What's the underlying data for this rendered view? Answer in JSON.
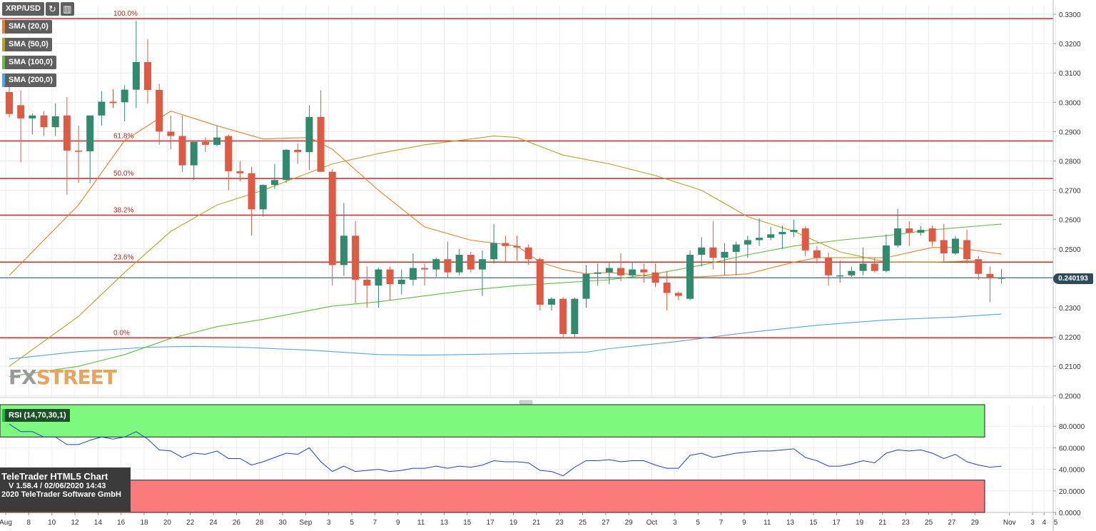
{
  "toolbar": {
    "symbol": "XRP/USD",
    "refresh_icon": "refresh-icon",
    "settings_icon": "chart-settings-icon"
  },
  "legend": [
    {
      "label": "SMA (20,0)",
      "color": "#f07f1f"
    },
    {
      "label": "SMA (50,0)",
      "color": "#b5a520"
    },
    {
      "label": "SMA (100,0)",
      "color": "#5cc13a"
    },
    {
      "label": "SMA (200,0)",
      "color": "#4aa8e8"
    }
  ],
  "watermark": {
    "part1": "FX",
    "part2": "STREET"
  },
  "current_price": "0.240193",
  "rsi": {
    "label": "RSI (14,70,30,1)"
  },
  "branding": {
    "title": "TeleTrader HTML5 Chart",
    "version": "V 1.58.4 / 02/06/2020 14:43",
    "copyright": "2020 TeleTrader Software GmbH"
  },
  "chart_data": {
    "type": "candlestick",
    "pair": "XRP/USD",
    "ylim": [
      0.2,
      0.33
    ],
    "y_ticks": [
      "0.3300",
      "0.3200",
      "0.3100",
      "0.3000",
      "0.2900",
      "0.2800",
      "0.2700",
      "0.2600",
      "0.2500",
      "0.2400",
      "0.2300",
      "0.2200",
      "0.2100",
      "0.2000"
    ],
    "x_ticks": [
      {
        "label": "Aug",
        "i": 0
      },
      {
        "label": "8",
        "i": 2
      },
      {
        "label": "10",
        "i": 4
      },
      {
        "label": "12",
        "i": 6
      },
      {
        "label": "14",
        "i": 8
      },
      {
        "label": "16",
        "i": 10
      },
      {
        "label": "18",
        "i": 12
      },
      {
        "label": "20",
        "i": 14
      },
      {
        "label": "22",
        "i": 16
      },
      {
        "label": "24",
        "i": 18
      },
      {
        "label": "26",
        "i": 20
      },
      {
        "label": "28",
        "i": 22
      },
      {
        "label": "30",
        "i": 24
      },
      {
        "label": "Sep",
        "i": 26
      },
      {
        "label": "3",
        "i": 28
      },
      {
        "label": "5",
        "i": 30
      },
      {
        "label": "7",
        "i": 32
      },
      {
        "label": "9",
        "i": 34
      },
      {
        "label": "11",
        "i": 36
      },
      {
        "label": "13",
        "i": 38
      },
      {
        "label": "15",
        "i": 40
      },
      {
        "label": "17",
        "i": 42
      },
      {
        "label": "19",
        "i": 44
      },
      {
        "label": "21",
        "i": 46
      },
      {
        "label": "23",
        "i": 48
      },
      {
        "label": "25",
        "i": 50
      },
      {
        "label": "27",
        "i": 52
      },
      {
        "label": "29",
        "i": 54
      },
      {
        "label": "Oct",
        "i": 56
      },
      {
        "label": "3",
        "i": 58
      },
      {
        "label": "5",
        "i": 60
      },
      {
        "label": "7",
        "i": 62
      },
      {
        "label": "9",
        "i": 64
      },
      {
        "label": "11",
        "i": 66
      },
      {
        "label": "13",
        "i": 68
      },
      {
        "label": "15",
        "i": 70
      },
      {
        "label": "17",
        "i": 72
      },
      {
        "label": "19",
        "i": 74
      },
      {
        "label": "21",
        "i": 76
      },
      {
        "label": "23",
        "i": 78
      },
      {
        "label": "25",
        "i": 80
      },
      {
        "label": "27",
        "i": 82
      },
      {
        "label": "29",
        "i": 84
      },
      {
        "label": "Nov",
        "i": 87
      },
      {
        "label": "3",
        "i": 89
      },
      {
        "label": "4",
        "i": 90
      },
      {
        "label": "5",
        "i": 91
      }
    ],
    "candles": [
      [
        0.3035,
        0.308,
        0.2948,
        0.296
      ],
      [
        0.299,
        0.304,
        0.2795,
        0.2945
      ],
      [
        0.2945,
        0.2962,
        0.289,
        0.2955
      ],
      [
        0.2955,
        0.297,
        0.2885,
        0.2915
      ],
      [
        0.2915,
        0.2997,
        0.2885,
        0.2952
      ],
      [
        0.2955,
        0.3018,
        0.2685,
        0.2835
      ],
      [
        0.2835,
        0.292,
        0.2725,
        0.2833
      ],
      [
        0.2833,
        0.2955,
        0.2725,
        0.2955
      ],
      [
        0.2955,
        0.3038,
        0.292,
        0.3002
      ],
      [
        0.3002,
        0.3045,
        0.298,
        0.2997
      ],
      [
        0.3,
        0.3058,
        0.2935,
        0.3043
      ],
      [
        0.3043,
        0.3278,
        0.298,
        0.3137
      ],
      [
        0.3137,
        0.3215,
        0.2995,
        0.3042
      ],
      [
        0.3042,
        0.3063,
        0.2855,
        0.29
      ],
      [
        0.29,
        0.2955,
        0.284,
        0.2885
      ],
      [
        0.2885,
        0.2955,
        0.2762,
        0.2785
      ],
      [
        0.2785,
        0.2865,
        0.2735,
        0.2865
      ],
      [
        0.2865,
        0.288,
        0.283,
        0.2855
      ],
      [
        0.2855,
        0.292,
        0.285,
        0.288
      ],
      [
        0.2885,
        0.289,
        0.27,
        0.2765
      ],
      [
        0.2765,
        0.28,
        0.273,
        0.2758
      ],
      [
        0.2758,
        0.278,
        0.2545,
        0.2635
      ],
      [
        0.2635,
        0.272,
        0.261,
        0.2718
      ],
      [
        0.2718,
        0.279,
        0.2705,
        0.2735
      ],
      [
        0.2735,
        0.284,
        0.2725,
        0.2838
      ],
      [
        0.2838,
        0.286,
        0.279,
        0.283
      ],
      [
        0.283,
        0.299,
        0.277,
        0.295
      ],
      [
        0.295,
        0.304,
        0.2763,
        0.2763
      ],
      [
        0.2763,
        0.2773,
        0.2375,
        0.2445
      ],
      [
        0.2445,
        0.2657,
        0.2408,
        0.2545
      ],
      [
        0.2545,
        0.2595,
        0.2315,
        0.2395
      ],
      [
        0.2395,
        0.244,
        0.23,
        0.2375
      ],
      [
        0.2375,
        0.2435,
        0.23,
        0.243
      ],
      [
        0.243,
        0.244,
        0.2325,
        0.238
      ],
      [
        0.238,
        0.243,
        0.2345,
        0.2395
      ],
      [
        0.2395,
        0.2485,
        0.2375,
        0.2435
      ],
      [
        0.2435,
        0.245,
        0.2375,
        0.243
      ],
      [
        0.243,
        0.247,
        0.2405,
        0.2465
      ],
      [
        0.2465,
        0.2525,
        0.24,
        0.242
      ],
      [
        0.242,
        0.25,
        0.241,
        0.248
      ],
      [
        0.248,
        0.249,
        0.242,
        0.243
      ],
      [
        0.243,
        0.2495,
        0.234,
        0.2465
      ],
      [
        0.2465,
        0.2585,
        0.245,
        0.252
      ],
      [
        0.252,
        0.2545,
        0.2455,
        0.251
      ],
      [
        0.251,
        0.2545,
        0.246,
        0.2505
      ],
      [
        0.2505,
        0.2515,
        0.2445,
        0.2465
      ],
      [
        0.2465,
        0.247,
        0.229,
        0.231
      ],
      [
        0.231,
        0.2335,
        0.229,
        0.233
      ],
      [
        0.233,
        0.2335,
        0.22,
        0.221
      ],
      [
        0.221,
        0.2335,
        0.22,
        0.233
      ],
      [
        0.233,
        0.2445,
        0.23,
        0.2415
      ],
      [
        0.2415,
        0.245,
        0.2375,
        0.242
      ],
      [
        0.242,
        0.2455,
        0.238,
        0.2435
      ],
      [
        0.2435,
        0.2485,
        0.239,
        0.241
      ],
      [
        0.241,
        0.2455,
        0.2405,
        0.243
      ],
      [
        0.243,
        0.245,
        0.2385,
        0.242
      ],
      [
        0.242,
        0.245,
        0.237,
        0.2385
      ],
      [
        0.2385,
        0.2425,
        0.229,
        0.235
      ],
      [
        0.235,
        0.2355,
        0.2325,
        0.234
      ],
      [
        0.233,
        0.2495,
        0.2325,
        0.248
      ],
      [
        0.248,
        0.254,
        0.244,
        0.2505
      ],
      [
        0.2505,
        0.2595,
        0.243,
        0.247
      ],
      [
        0.247,
        0.252,
        0.241,
        0.249
      ],
      [
        0.249,
        0.2525,
        0.241,
        0.2515
      ],
      [
        0.2515,
        0.2545,
        0.247,
        0.253
      ],
      [
        0.253,
        0.2605,
        0.251,
        0.2538
      ],
      [
        0.2538,
        0.2575,
        0.253,
        0.255
      ],
      [
        0.255,
        0.258,
        0.25,
        0.2558
      ],
      [
        0.2558,
        0.26,
        0.254,
        0.2565
      ],
      [
        0.257,
        0.2577,
        0.2475,
        0.2495
      ],
      [
        0.2495,
        0.251,
        0.245,
        0.247
      ],
      [
        0.247,
        0.2487,
        0.2375,
        0.241
      ],
      [
        0.241,
        0.246,
        0.2385,
        0.241
      ],
      [
        0.241,
        0.244,
        0.2405,
        0.2425
      ],
      [
        0.2425,
        0.2505,
        0.241,
        0.245
      ],
      [
        0.245,
        0.247,
        0.242,
        0.2425
      ],
      [
        0.2425,
        0.255,
        0.242,
        0.2512
      ],
      [
        0.2512,
        0.2637,
        0.2505,
        0.257
      ],
      [
        0.257,
        0.2595,
        0.251,
        0.2555
      ],
      [
        0.2555,
        0.2578,
        0.2545,
        0.2565
      ],
      [
        0.257,
        0.258,
        0.251,
        0.2525
      ],
      [
        0.253,
        0.2585,
        0.2455,
        0.2485
      ],
      [
        0.2485,
        0.2545,
        0.248,
        0.2535
      ],
      [
        0.253,
        0.2565,
        0.245,
        0.2465
      ],
      [
        0.2465,
        0.2475,
        0.2395,
        0.2415
      ],
      [
        0.2415,
        0.244,
        0.2318,
        0.2402
      ],
      [
        0.2402,
        0.2432,
        0.2382,
        0.2402
      ]
    ],
    "sma20": [
      [
        0,
        0.241
      ],
      [
        6,
        0.265
      ],
      [
        10,
        0.287
      ],
      [
        14,
        0.297
      ],
      [
        18,
        0.292
      ],
      [
        22,
        0.2875
      ],
      [
        26,
        0.288
      ],
      [
        28,
        0.284
      ],
      [
        32,
        0.27
      ],
      [
        36,
        0.2575
      ],
      [
        40,
        0.253
      ],
      [
        44,
        0.251
      ],
      [
        46,
        0.2455
      ],
      [
        48,
        0.243
      ],
      [
        50,
        0.2415
      ],
      [
        52,
        0.242
      ],
      [
        56,
        0.2405
      ],
      [
        60,
        0.2405
      ],
      [
        64,
        0.2415
      ],
      [
        68,
        0.2455
      ],
      [
        70,
        0.247
      ],
      [
        76,
        0.247
      ],
      [
        80,
        0.2505
      ],
      [
        82,
        0.2505
      ],
      [
        86,
        0.2482
      ]
    ],
    "sma50": [
      [
        0,
        0.21
      ],
      [
        6,
        0.227
      ],
      [
        10,
        0.242
      ],
      [
        14,
        0.256
      ],
      [
        18,
        0.265
      ],
      [
        22,
        0.27
      ],
      [
        26,
        0.276
      ],
      [
        28,
        0.279
      ],
      [
        32,
        0.2825
      ],
      [
        36,
        0.2855
      ],
      [
        40,
        0.2875
      ],
      [
        42,
        0.2885
      ],
      [
        44,
        0.288
      ],
      [
        46,
        0.285
      ],
      [
        48,
        0.282
      ],
      [
        52,
        0.279
      ],
      [
        56,
        0.275
      ],
      [
        60,
        0.27
      ],
      [
        64,
        0.261
      ],
      [
        68,
        0.256
      ],
      [
        72,
        0.249
      ],
      [
        76,
        0.2455
      ],
      [
        80,
        0.2455
      ],
      [
        84,
        0.246
      ]
    ],
    "sma100": [
      [
        0,
        0.2065
      ],
      [
        6,
        0.21
      ],
      [
        10,
        0.214
      ],
      [
        14,
        0.2195
      ],
      [
        18,
        0.2235
      ],
      [
        22,
        0.226
      ],
      [
        26,
        0.229
      ],
      [
        28,
        0.2305
      ],
      [
        32,
        0.232
      ],
      [
        36,
        0.234
      ],
      [
        40,
        0.236
      ],
      [
        44,
        0.2375
      ],
      [
        48,
        0.2385
      ],
      [
        52,
        0.2395
      ],
      [
        56,
        0.2415
      ],
      [
        60,
        0.2445
      ],
      [
        64,
        0.248
      ],
      [
        68,
        0.251
      ],
      [
        72,
        0.253
      ],
      [
        76,
        0.2545
      ],
      [
        80,
        0.2565
      ],
      [
        86,
        0.2585
      ]
    ],
    "sma200": [
      [
        0,
        0.2125
      ],
      [
        6,
        0.215
      ],
      [
        12,
        0.2165
      ],
      [
        16,
        0.2168
      ],
      [
        20,
        0.2165
      ],
      [
        26,
        0.2155
      ],
      [
        32,
        0.214
      ],
      [
        36,
        0.2138
      ],
      [
        44,
        0.2143
      ],
      [
        50,
        0.2148
      ],
      [
        52,
        0.216
      ],
      [
        58,
        0.2185
      ],
      [
        64,
        0.2215
      ],
      [
        70,
        0.224
      ],
      [
        76,
        0.2258
      ],
      [
        82,
        0.2268
      ],
      [
        86,
        0.2278
      ]
    ],
    "fibonacci": [
      {
        "label": "100.0%",
        "value": 0.3285
      },
      {
        "label": "61.8%",
        "value": 0.2868
      },
      {
        "label": "50.0%",
        "value": 0.274
      },
      {
        "label": "38.2%",
        "value": 0.2615
      },
      {
        "label": "23.6%",
        "value": 0.2455
      },
      {
        "label": "0.0%",
        "value": 0.2197
      }
    ],
    "rsi_ticks": [
      "80.0000",
      "60.0000",
      "40.0000",
      "20.0000",
      "0.0000"
    ],
    "rsi_levels": {
      "overbought": 70,
      "oversold": 30
    },
    "rsi_values": [
      82,
      75,
      75,
      70,
      70,
      63,
      63,
      67,
      70,
      68,
      70,
      75,
      68,
      58,
      57,
      51,
      55,
      54,
      57,
      50,
      50,
      44,
      47,
      51,
      55,
      54,
      60,
      47,
      38,
      43,
      38,
      39,
      40,
      38,
      39,
      41,
      41,
      43,
      41,
      43,
      42,
      44,
      48,
      47,
      47,
      46,
      39,
      38,
      34,
      42,
      48,
      48,
      49,
      47,
      48,
      48,
      44,
      41,
      41,
      53,
      55,
      51,
      53,
      55,
      56,
      57,
      57,
      58,
      59,
      51,
      48,
      43,
      43,
      45,
      48,
      46,
      55,
      58,
      57,
      58,
      55,
      50,
      54,
      47,
      44,
      42,
      43
    ]
  }
}
